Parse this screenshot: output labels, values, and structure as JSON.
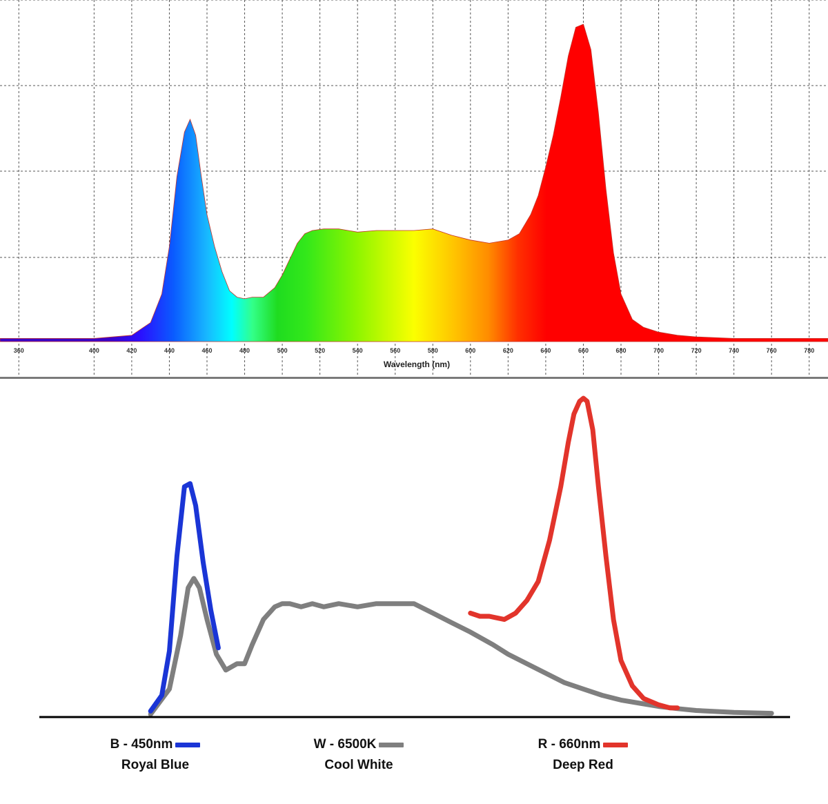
{
  "chart_data": [
    {
      "type": "area",
      "xlabel": "Wavelength (nm)",
      "ylabel": "",
      "xlim": [
        350,
        790
      ],
      "ylim": [
        0,
        1
      ],
      "grid": true,
      "x_ticks": [
        360,
        400,
        420,
        440,
        460,
        480,
        500,
        520,
        540,
        560,
        580,
        600,
        620,
        640,
        660,
        680,
        700,
        720,
        740,
        760,
        780
      ],
      "x_tick_labels": [
        "360",
        "400",
        "420",
        "440",
        "460",
        "480",
        "500",
        "520",
        "540",
        "560",
        "580",
        "600",
        "620",
        "640",
        "660",
        "680",
        "700",
        "720",
        "740",
        "760",
        "780"
      ],
      "x": [
        350,
        400,
        420,
        430,
        436,
        440,
        444,
        448,
        451,
        454,
        457,
        460,
        464,
        468,
        472,
        476,
        480,
        484,
        490,
        496,
        500,
        504,
        508,
        512,
        516,
        522,
        530,
        540,
        550,
        560,
        570,
        580,
        590,
        600,
        610,
        620,
        626,
        632,
        636,
        640,
        644,
        648,
        652,
        656,
        660,
        664,
        668,
        672,
        676,
        680,
        686,
        692,
        700,
        710,
        720,
        740,
        760,
        790
      ],
      "y": [
        0.01,
        0.01,
        0.02,
        0.06,
        0.15,
        0.3,
        0.52,
        0.66,
        0.7,
        0.65,
        0.52,
        0.4,
        0.3,
        0.22,
        0.16,
        0.14,
        0.135,
        0.14,
        0.14,
        0.17,
        0.21,
        0.26,
        0.31,
        0.34,
        0.35,
        0.355,
        0.355,
        0.345,
        0.35,
        0.35,
        0.35,
        0.355,
        0.335,
        0.32,
        0.31,
        0.32,
        0.34,
        0.4,
        0.46,
        0.55,
        0.65,
        0.77,
        0.9,
        0.99,
        1.0,
        0.92,
        0.72,
        0.48,
        0.28,
        0.15,
        0.07,
        0.045,
        0.03,
        0.02,
        0.015,
        0.01,
        0.01,
        0.01
      ]
    },
    {
      "type": "line",
      "xlim": [
        350,
        790
      ],
      "ylim": [
        0,
        1
      ],
      "series": [
        {
          "name": "B - 450nm",
          "color": "#1a35d6",
          "x": [
            430,
            436,
            440,
            444,
            448,
            451,
            454,
            458,
            462,
            466
          ],
          "y": [
            0.01,
            0.06,
            0.2,
            0.5,
            0.72,
            0.73,
            0.66,
            0.48,
            0.33,
            0.21
          ]
        },
        {
          "name": "W - 6500K",
          "color": "#7f7f7f",
          "x": [
            430,
            440,
            446,
            450,
            453,
            456,
            460,
            465,
            470,
            476,
            480,
            484,
            490,
            496,
            500,
            504,
            510,
            516,
            522,
            530,
            540,
            550,
            560,
            570,
            580,
            590,
            600,
            612,
            620,
            630,
            640,
            650,
            660,
            670,
            680,
            690,
            700,
            710,
            720,
            740,
            760
          ],
          "y": [
            0.0,
            0.08,
            0.25,
            0.4,
            0.43,
            0.4,
            0.3,
            0.19,
            0.14,
            0.16,
            0.16,
            0.22,
            0.3,
            0.34,
            0.35,
            0.35,
            0.34,
            0.35,
            0.34,
            0.35,
            0.34,
            0.35,
            0.35,
            0.35,
            0.32,
            0.29,
            0.26,
            0.22,
            0.19,
            0.16,
            0.13,
            0.1,
            0.08,
            0.06,
            0.045,
            0.035,
            0.025,
            0.018,
            0.012,
            0.006,
            0.003
          ]
        },
        {
          "name": "R - 660nm",
          "color": "#e2342b",
          "x": [
            600,
            605,
            610,
            614,
            618,
            624,
            630,
            636,
            642,
            648,
            652,
            655,
            658,
            660,
            662,
            665,
            668,
            672,
            676,
            680,
            686,
            692,
            700,
            706,
            710
          ],
          "y": [
            0.32,
            0.31,
            0.31,
            0.305,
            0.3,
            0.32,
            0.36,
            0.42,
            0.55,
            0.72,
            0.86,
            0.95,
            0.99,
            1.0,
            0.99,
            0.9,
            0.72,
            0.5,
            0.3,
            0.17,
            0.09,
            0.05,
            0.03,
            0.02,
            0.02
          ]
        }
      ]
    }
  ],
  "legend": [
    {
      "title": "B - 450nm",
      "subtitle": "Royal Blue",
      "color": "#1a35d6"
    },
    {
      "title": "W - 6500K",
      "subtitle": "Cool White",
      "color": "#7f7f7f"
    },
    {
      "title": "R - 660nm",
      "subtitle": "Deep Red",
      "color": "#e2342b"
    }
  ]
}
